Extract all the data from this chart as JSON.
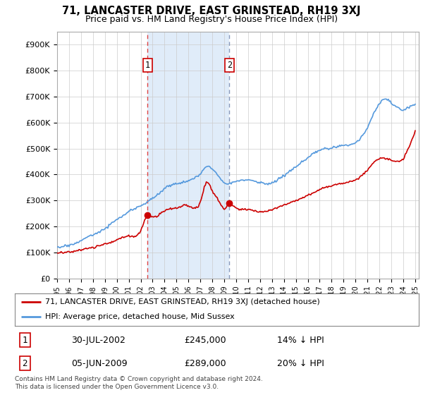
{
  "title": "71, LANCASTER DRIVE, EAST GRINSTEAD, RH19 3XJ",
  "subtitle": "Price paid vs. HM Land Registry's House Price Index (HPI)",
  "ylabel_values": [
    "£0",
    "£100K",
    "£200K",
    "£300K",
    "£400K",
    "£500K",
    "£600K",
    "£700K",
    "£800K",
    "£900K"
  ],
  "ylim": [
    0,
    950000
  ],
  "xlim_start": 1995.0,
  "xlim_end": 2025.3,
  "sale1_date": 2002.58,
  "sale1_price": 245000,
  "sale1_label": "1",
  "sale2_date": 2009.43,
  "sale2_price": 289000,
  "sale2_label": "2",
  "hpi_color": "#5599dd",
  "price_color": "#cc0000",
  "vline1_color": "#dd4444",
  "vline2_color": "#8899bb",
  "shade_color": "#ddeeff",
  "background_color": "#ffffff",
  "plot_bg": "#ffffff",
  "legend_line1": "71, LANCASTER DRIVE, EAST GRINSTEAD, RH19 3XJ (detached house)",
  "legend_line2": "HPI: Average price, detached house, Mid Sussex",
  "table_row1": [
    "1",
    "30-JUL-2002",
    "£245,000",
    "14% ↓ HPI"
  ],
  "table_row2": [
    "2",
    "05-JUN-2009",
    "£289,000",
    "20% ↓ HPI"
  ],
  "footer": "Contains HM Land Registry data © Crown copyright and database right 2024.\nThis data is licensed under the Open Government Licence v3.0."
}
